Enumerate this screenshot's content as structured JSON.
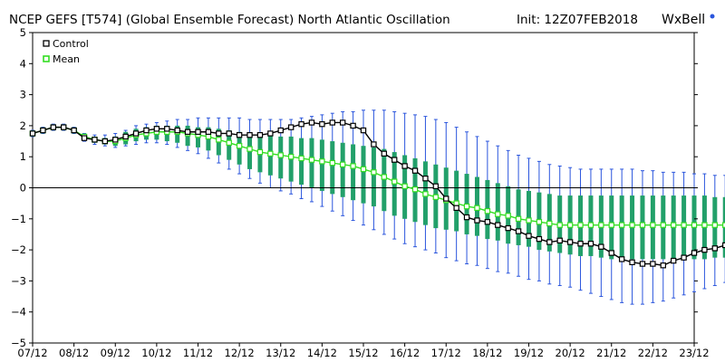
{
  "title": "NCEP GEFS [T574] (Global Ensemble Forecast) North Atlantic Oscillation",
  "init": "Init: 12Z07FEB2018",
  "brand": "WxBell",
  "colors": {
    "control": "#000000",
    "mean": "#33dd22",
    "box": "#22a06a",
    "whisker": "#2a55dd",
    "brand_dot": "#2a55dd"
  },
  "chart_data": {
    "type": "line",
    "title": "NCEP GEFS [T574] (Global Ensemble Forecast) North Atlantic Oscillation",
    "xlabel": "",
    "ylabel": "",
    "ylim": [
      -5,
      5
    ],
    "yticks": [
      "5",
      "4",
      "3",
      "2",
      "1",
      "0",
      "−1",
      "−2",
      "−3",
      "−4",
      "−5"
    ],
    "xticks": [
      "07/12",
      "08/12",
      "09/12",
      "10/12",
      "11/12",
      "12/12",
      "13/12",
      "14/12",
      "15/12",
      "16/12",
      "17/12",
      "18/12",
      "19/12",
      "20/12",
      "21/12",
      "22/12",
      "23/12"
    ],
    "x_start_day": 7,
    "x_step_days": 0.25,
    "legend": [
      "Control",
      "Mean"
    ],
    "legend_position": "top-left",
    "zero_line": true,
    "series": [
      {
        "name": "Control",
        "values": [
          1.75,
          1.85,
          1.95,
          1.95,
          1.85,
          1.6,
          1.55,
          1.5,
          1.55,
          1.65,
          1.75,
          1.85,
          1.9,
          1.9,
          1.85,
          1.8,
          1.8,
          1.8,
          1.75,
          1.75,
          1.7,
          1.7,
          1.7,
          1.75,
          1.85,
          1.95,
          2.05,
          2.1,
          2.05,
          2.1,
          2.1,
          2.0,
          1.85,
          1.4,
          1.1,
          0.9,
          0.7,
          0.55,
          0.3,
          0.05,
          -0.35,
          -0.65,
          -0.95,
          -1.05,
          -1.1,
          -1.2,
          -1.3,
          -1.4,
          -1.55,
          -1.65,
          -1.75,
          -1.7,
          -1.75,
          -1.8,
          -1.8,
          -1.9,
          -2.1,
          -2.3,
          -2.4,
          -2.45,
          -2.45,
          -2.5,
          -2.35,
          -2.25,
          -2.1,
          -2.0,
          -1.95,
          -1.85,
          -1.75,
          -1.7,
          -1.75,
          -1.75,
          -1.8,
          -1.85,
          -1.9,
          -1.9,
          -1.95
        ]
      },
      {
        "name": "Mean",
        "values": [
          1.75,
          1.85,
          1.95,
          1.95,
          1.85,
          1.65,
          1.55,
          1.5,
          1.5,
          1.6,
          1.7,
          1.75,
          1.8,
          1.8,
          1.8,
          1.75,
          1.7,
          1.65,
          1.55,
          1.45,
          1.35,
          1.25,
          1.15,
          1.1,
          1.05,
          1.0,
          0.95,
          0.9,
          0.85,
          0.8,
          0.75,
          0.7,
          0.6,
          0.5,
          0.35,
          0.2,
          0.05,
          -0.05,
          -0.2,
          -0.3,
          -0.4,
          -0.5,
          -0.6,
          -0.65,
          -0.75,
          -0.85,
          -0.9,
          -1.0,
          -1.05,
          -1.1,
          -1.15,
          -1.2,
          -1.2,
          -1.2,
          -1.2,
          -1.2,
          -1.2,
          -1.2,
          -1.2,
          -1.2,
          -1.2,
          -1.2,
          -1.2,
          -1.2,
          -1.2,
          -1.2,
          -1.2,
          -1.2,
          -1.2,
          -1.2,
          -1.2,
          -1.2,
          -1.2,
          -1.25,
          -1.3,
          -1.35,
          -1.35
        ]
      }
    ],
    "ensemble_spread": {
      "box_low": [
        1.7,
        1.8,
        1.9,
        1.9,
        1.8,
        1.55,
        1.45,
        1.4,
        1.35,
        1.4,
        1.5,
        1.55,
        1.55,
        1.5,
        1.45,
        1.35,
        1.3,
        1.2,
        1.05,
        0.9,
        0.75,
        0.6,
        0.5,
        0.4,
        0.3,
        0.2,
        0.1,
        0.0,
        -0.1,
        -0.2,
        -0.3,
        -0.4,
        -0.5,
        -0.6,
        -0.75,
        -0.9,
        -1.0,
        -1.1,
        -1.2,
        -1.3,
        -1.35,
        -1.4,
        -1.5,
        -1.55,
        -1.65,
        -1.7,
        -1.8,
        -1.85,
        -1.9,
        -2.0,
        -2.05,
        -2.1,
        -2.15,
        -2.2,
        -2.2,
        -2.25,
        -2.3,
        -2.3,
        -2.3,
        -2.3,
        -2.3,
        -2.3,
        -2.3,
        -2.3,
        -2.3,
        -2.3,
        -2.25,
        -2.25,
        -2.2,
        -2.2,
        -2.15,
        -2.15,
        -2.15,
        -2.15,
        -2.1,
        -2.1,
        -2.1
      ],
      "box_high": [
        1.8,
        1.9,
        2.0,
        2.0,
        1.9,
        1.7,
        1.65,
        1.6,
        1.65,
        1.8,
        1.9,
        1.95,
        2.0,
        2.0,
        2.0,
        2.0,
        1.95,
        1.95,
        1.9,
        1.85,
        1.8,
        1.75,
        1.7,
        1.7,
        1.65,
        1.65,
        1.6,
        1.6,
        1.55,
        1.5,
        1.45,
        1.4,
        1.35,
        1.3,
        1.25,
        1.15,
        1.05,
        0.95,
        0.85,
        0.75,
        0.65,
        0.55,
        0.45,
        0.35,
        0.25,
        0.15,
        0.05,
        -0.05,
        -0.1,
        -0.15,
        -0.2,
        -0.25,
        -0.25,
        -0.25,
        -0.25,
        -0.25,
        -0.25,
        -0.25,
        -0.25,
        -0.25,
        -0.25,
        -0.25,
        -0.25,
        -0.25,
        -0.25,
        -0.25,
        -0.3,
        -0.3,
        -0.35,
        -0.35,
        -0.4,
        -0.45,
        -0.5,
        -0.55,
        -0.6,
        -0.65,
        -0.7
      ],
      "whisker_low": [
        1.65,
        1.75,
        1.85,
        1.85,
        1.75,
        1.5,
        1.4,
        1.35,
        1.3,
        1.35,
        1.4,
        1.45,
        1.45,
        1.4,
        1.3,
        1.2,
        1.1,
        0.95,
        0.8,
        0.6,
        0.45,
        0.3,
        0.15,
        0.0,
        -0.1,
        -0.2,
        -0.35,
        -0.45,
        -0.6,
        -0.75,
        -0.9,
        -1.05,
        -1.2,
        -1.35,
        -1.5,
        -1.65,
        -1.8,
        -1.9,
        -2.0,
        -2.1,
        -2.25,
        -2.35,
        -2.45,
        -2.5,
        -2.6,
        -2.7,
        -2.75,
        -2.85,
        -2.95,
        -3.0,
        -3.1,
        -3.15,
        -3.2,
        -3.3,
        -3.4,
        -3.5,
        -3.6,
        -3.7,
        -3.75,
        -3.75,
        -3.7,
        -3.65,
        -3.55,
        -3.45,
        -3.35,
        -3.25,
        -3.15,
        -3.05,
        -2.95,
        -2.85,
        -2.75,
        -2.65,
        -2.55,
        -2.45,
        -2.4,
        -2.35,
        -2.3
      ],
      "whisker_high": [
        1.85,
        1.95,
        2.05,
        2.05,
        1.95,
        1.75,
        1.7,
        1.7,
        1.75,
        1.85,
        2.0,
        2.05,
        2.1,
        2.15,
        2.2,
        2.2,
        2.25,
        2.25,
        2.25,
        2.25,
        2.25,
        2.2,
        2.2,
        2.2,
        2.2,
        2.2,
        2.25,
        2.3,
        2.35,
        2.4,
        2.45,
        2.45,
        2.5,
        2.5,
        2.5,
        2.45,
        2.4,
        2.35,
        2.3,
        2.2,
        2.1,
        1.95,
        1.8,
        1.65,
        1.5,
        1.35,
        1.2,
        1.05,
        0.95,
        0.85,
        0.75,
        0.7,
        0.65,
        0.6,
        0.6,
        0.6,
        0.6,
        0.6,
        0.6,
        0.55,
        0.55,
        0.5,
        0.5,
        0.5,
        0.45,
        0.45,
        0.4,
        0.4,
        0.35,
        0.35,
        0.3,
        0.3,
        0.25,
        0.2,
        0.1,
        0.05,
        0.0
      ]
    }
  }
}
